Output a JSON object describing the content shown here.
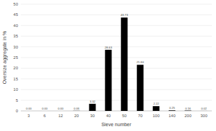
{
  "chart_data": {
    "type": "bar",
    "x_label": "Sieve number",
    "y_label": "Oversize aggregate in %",
    "categories": [
      "3",
      "6",
      "12",
      "20",
      "30",
      "40",
      "50",
      "70",
      "100",
      "140",
      "200",
      "300"
    ],
    "values": [
      0,
      0,
      0,
      0.06,
      3.32,
      28.63,
      43.73,
      21.6,
      2.22,
      0.25,
      0.16,
      0.02
    ],
    "value_labels": [
      "0.00",
      "0.00",
      "0.00",
      "0.06",
      "3.32",
      "28.63",
      "43.73",
      "21.60",
      "2.22",
      "0.25",
      "0.16",
      "0.02"
    ],
    "color": "#000000",
    "ylim": [
      0,
      50
    ],
    "yticks": [
      0,
      5,
      10,
      15,
      20,
      25,
      30,
      35,
      40,
      45,
      50
    ],
    "grid": true,
    "data_labels": true
  }
}
